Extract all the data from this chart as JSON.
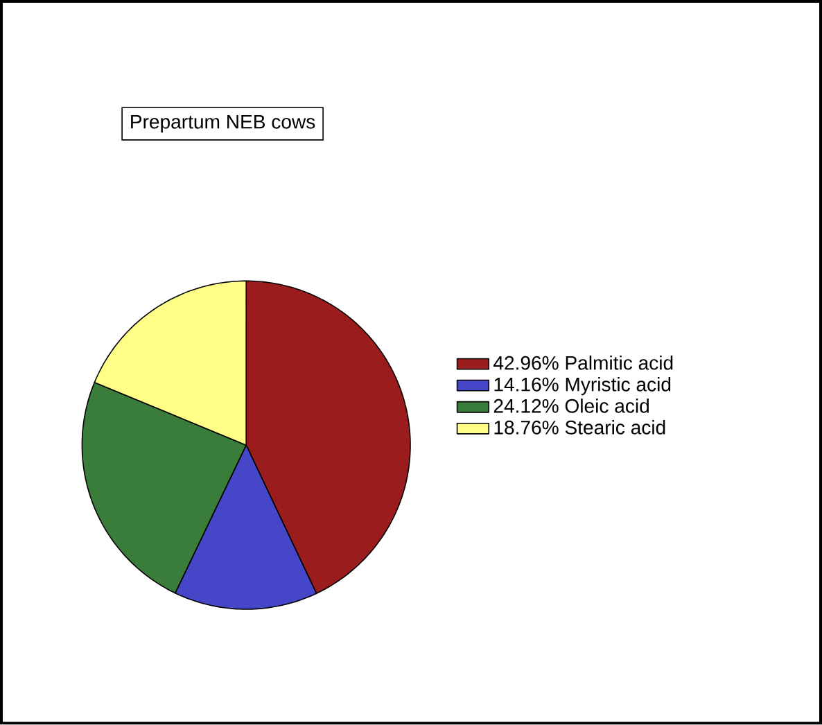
{
  "chart_data": {
    "type": "pie",
    "title": "Prepartum NEB cows",
    "categories": [
      "42.96%  Palmitic acid",
      "14.16%  Myristic acid",
      "24.12%  Oleic acid",
      "18.76%  Stearic acid"
    ],
    "values": [
      42.96,
      14.16,
      24.12,
      18.76
    ],
    "colors": [
      "#9b1c1c",
      "#4646c8",
      "#3a7d3a",
      "#ffff88"
    ],
    "legend": "right"
  }
}
